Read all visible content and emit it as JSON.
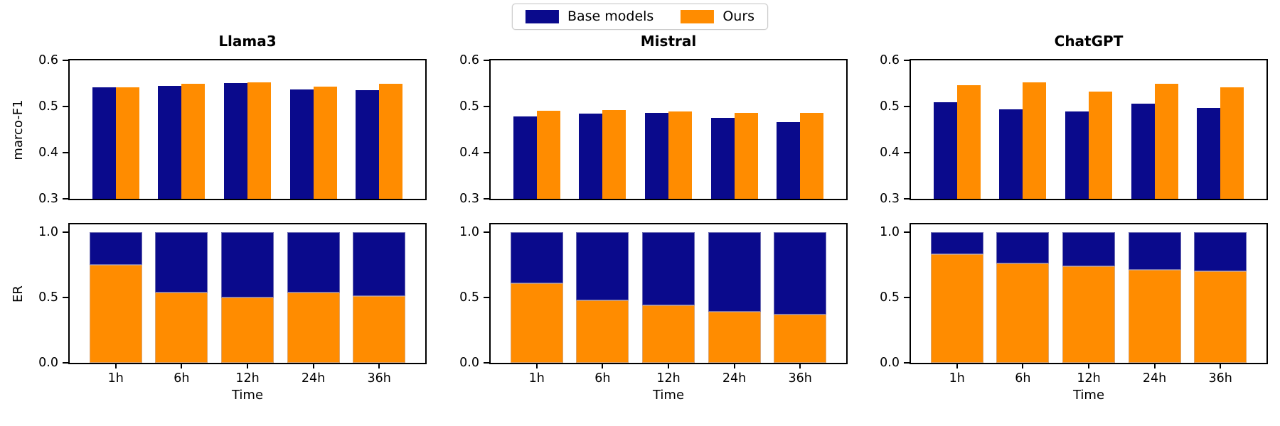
{
  "legend": {
    "items": [
      {
        "label": "Base models",
        "color": "#0A0A8C"
      },
      {
        "label": "Ours",
        "color": "#FF8C00"
      }
    ]
  },
  "chart_data": {
    "type": "bar",
    "layout": "2 rows x 3 columns, shared legend top center",
    "categories": [
      "1h",
      "6h",
      "12h",
      "24h",
      "36h"
    ],
    "xlabel": "Time",
    "legend": [
      "Base models",
      "Ours"
    ],
    "colors": {
      "Base models": "#0A0A8C",
      "Ours": "#FF8C00"
    },
    "rows": [
      {
        "type": "grouped-bar",
        "ylabel": "marco-F1",
        "ylim": [
          0.3,
          0.6
        ],
        "yticks": [
          "0.6",
          "0.5",
          "0.4",
          "0.3"
        ],
        "panels": [
          {
            "title": "Llama3",
            "series": [
              {
                "name": "Base models",
                "values": [
                  0.541,
                  0.545,
                  0.551,
                  0.537,
                  0.535
                ]
              },
              {
                "name": "Ours",
                "values": [
                  0.542,
                  0.55,
                  0.553,
                  0.543,
                  0.549
                ]
              }
            ]
          },
          {
            "title": "Mistral",
            "series": [
              {
                "name": "Base models",
                "values": [
                  0.478,
                  0.484,
                  0.487,
                  0.475,
                  0.467
                ]
              },
              {
                "name": "Ours",
                "values": [
                  0.491,
                  0.492,
                  0.489,
                  0.486,
                  0.487
                ]
              }
            ]
          },
          {
            "title": "ChatGPT",
            "series": [
              {
                "name": "Base models",
                "values": [
                  0.509,
                  0.494,
                  0.49,
                  0.506,
                  0.497
                ]
              },
              {
                "name": "Ours",
                "values": [
                  0.546,
                  0.553,
                  0.532,
                  0.55,
                  0.542
                ]
              }
            ]
          }
        ]
      },
      {
        "type": "stacked-bar",
        "ylabel": "ER",
        "ylim": [
          0,
          1
        ],
        "yticks": [
          "1.0",
          "0.5",
          "0.0"
        ],
        "stack_total": 1.0,
        "stack_order": "Ours on bottom (orange), Base models on top (navy)",
        "panels": [
          {
            "title": "Llama3",
            "series": [
              {
                "name": "Ours",
                "values": [
                  0.75,
                  0.54,
                  0.5,
                  0.54,
                  0.51
                ]
              },
              {
                "name": "Base models",
                "values": [
                  0.25,
                  0.46,
                  0.5,
                  0.46,
                  0.49
                ]
              }
            ]
          },
          {
            "title": "Mistral",
            "series": [
              {
                "name": "Ours",
                "values": [
                  0.61,
                  0.48,
                  0.44,
                  0.39,
                  0.37
                ]
              },
              {
                "name": "Base models",
                "values": [
                  0.39,
                  0.52,
                  0.56,
                  0.61,
                  0.63
                ]
              }
            ]
          },
          {
            "title": "ChatGPT",
            "series": [
              {
                "name": "Ours",
                "values": [
                  0.83,
                  0.76,
                  0.74,
                  0.71,
                  0.7
                ]
              },
              {
                "name": "Base models",
                "values": [
                  0.17,
                  0.24,
                  0.26,
                  0.29,
                  0.3
                ]
              }
            ]
          }
        ]
      }
    ]
  }
}
